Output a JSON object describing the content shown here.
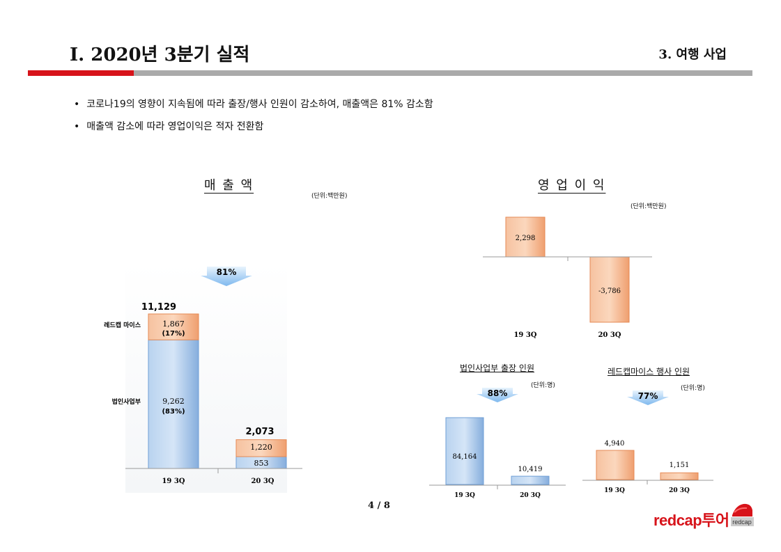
{
  "header": {
    "title": "Ⅰ. 2020년 3분기 실적",
    "section": "3. 여행 사업"
  },
  "bullets": [
    "코로나19의 영향이 지속됨에 따라 출장/행사 인원이 감소하여, 매출액은 81% 감소함",
    "매출액 감소에 따라 영업이익은 적자 전환함"
  ],
  "revenue": {
    "title": "매 출 액",
    "unit": "(단위:백만원)",
    "decline": "81%",
    "row_labels": [
      "레드캡 마이스",
      "법인사업부"
    ],
    "totals": [
      "11,129",
      "2,073"
    ],
    "segment_labels": {
      "top_19": "1,867",
      "top_19_share": "(17%)",
      "bottom_19": "9,262",
      "bottom_19_share": "(83%)",
      "top_20": "1,220",
      "bottom_20": "853"
    }
  },
  "operating": {
    "title": "영 업 이 익",
    "unit": "(단위:백만원)",
    "value_labels": [
      "2,298",
      "-3,786"
    ]
  },
  "business_trips": {
    "title": "법인사업부 출장 인원",
    "unit": "(단위:명)",
    "decline": "88%",
    "value_labels": [
      "84,164",
      "10,419"
    ]
  },
  "event_attendees": {
    "title": "레드캡마이스 행사 인원",
    "unit": "(단위:명)",
    "decline": "77%",
    "value_labels": [
      "4,940",
      "1,151"
    ]
  },
  "chart_data": [
    {
      "type": "bar",
      "name_ref": "매출액",
      "categories": [
        "19 3Q",
        "20 3Q"
      ],
      "series": [
        {
          "name": "법인사업부",
          "values": [
            9262,
            853
          ]
        },
        {
          "name": "레드캡 마이스",
          "values": [
            1867,
            1220
          ]
        }
      ],
      "totals": [
        11129,
        2073
      ]
    },
    {
      "type": "bar",
      "name_ref": "영업이익",
      "categories": [
        "19 3Q",
        "20 3Q"
      ],
      "values": [
        2298,
        -3786
      ]
    },
    {
      "type": "bar",
      "name_ref": "법인사업부 출장 인원",
      "categories": [
        "19 3Q",
        "20 3Q"
      ],
      "values": [
        84164,
        10419
      ]
    },
    {
      "type": "bar",
      "name_ref": "레드캡마이스 행사 인원",
      "categories": [
        "19 3Q",
        "20 3Q"
      ],
      "values": [
        4940,
        1151
      ]
    }
  ],
  "footer": {
    "page": "4 / 8",
    "logo_text": "redcap투어",
    "logo_mark": "redcap"
  },
  "colors": {
    "accent_red": "#d7131a",
    "orange_bar": "#f2b38c",
    "blue_bar": "#a9c8ea",
    "arrow_blue": "#8ec3f2"
  }
}
